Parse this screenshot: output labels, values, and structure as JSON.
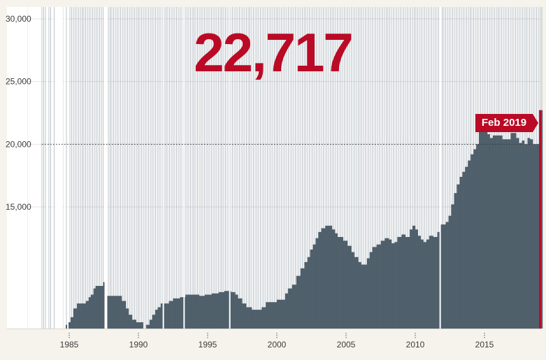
{
  "headline": "22,717",
  "annotation": {
    "label": "Feb 2019",
    "reference_line_value": 20000
  },
  "colors": {
    "background": "#f5f3ec",
    "plot_background": "#ffffff",
    "bars": "#4d5e69",
    "accent": "#ba0a26",
    "grid": "#e4e4e4"
  },
  "chart_data": {
    "type": "bar",
    "title": "",
    "xlabel": "",
    "ylabel": "",
    "ylim": [
      0,
      30000
    ],
    "xlim": [
      1980,
      2019.2
    ],
    "grid": true,
    "legend": "none",
    "y_ticks": [
      {
        "value": 30000,
        "label": "30,000"
      },
      {
        "value": 25000,
        "label": "25,000"
      },
      {
        "value": 20000,
        "label": "20,000"
      },
      {
        "value": 15000,
        "label": "15,000"
      }
    ],
    "x_ticks": [
      {
        "value": 1985,
        "label": "1985"
      },
      {
        "value": 1990,
        "label": "1990"
      },
      {
        "value": 1995,
        "label": "1995"
      },
      {
        "value": 2000,
        "label": "2000"
      },
      {
        "value": 2005,
        "label": "2005"
      },
      {
        "value": 2010,
        "label": "2010"
      },
      {
        "value": 2015,
        "label": "2015"
      }
    ],
    "gaps": [
      [
        1983.35,
        1983.45
      ],
      [
        1983.75,
        1983.85
      ],
      [
        1983.95,
        1984.55
      ],
      [
        1984.65,
        1984.75
      ],
      [
        1984.85,
        1984.95
      ],
      [
        1987.55,
        1987.75
      ],
      [
        1991.75,
        1991.85
      ],
      [
        1993.25,
        1993.35
      ],
      [
        1996.55,
        1996.65
      ],
      [
        2011.75,
        2011.85
      ]
    ],
    "series": [
      {
        "values": [
          [
            1983.0,
            0
          ],
          [
            1983.05,
            3700
          ],
          [
            1983.35,
            3700
          ],
          [
            1983.45,
            4000
          ],
          [
            1983.55,
            4200
          ],
          [
            1983.65,
            4500
          ],
          [
            1983.75,
            4900
          ],
          [
            1984.55,
            5300
          ],
          [
            1984.75,
            5600
          ],
          [
            1984.95,
            5800
          ],
          [
            1985.1,
            6200
          ],
          [
            1985.3,
            6900
          ],
          [
            1985.55,
            7300
          ],
          [
            1986.0,
            7300
          ],
          [
            1986.2,
            7500
          ],
          [
            1986.4,
            7800
          ],
          [
            1986.55,
            8000
          ],
          [
            1986.75,
            8500
          ],
          [
            1986.9,
            8700
          ],
          [
            1987.45,
            9000
          ],
          [
            1987.55,
            8700
          ],
          [
            1987.75,
            7900
          ],
          [
            1988.5,
            7900
          ],
          [
            1988.8,
            7500
          ],
          [
            1989.1,
            6900
          ],
          [
            1989.3,
            6400
          ],
          [
            1989.55,
            6000
          ],
          [
            1989.85,
            5800
          ],
          [
            1990.2,
            5800
          ],
          [
            1990.35,
            5300
          ],
          [
            1990.55,
            5600
          ],
          [
            1990.8,
            6000
          ],
          [
            1991.0,
            6400
          ],
          [
            1991.2,
            6800
          ],
          [
            1991.4,
            7000
          ],
          [
            1991.6,
            7300
          ],
          [
            1992.2,
            7500
          ],
          [
            1992.5,
            7700
          ],
          [
            1993.0,
            7800
          ],
          [
            1993.4,
            8000
          ],
          [
            1994.4,
            7900
          ],
          [
            1994.8,
            8000
          ],
          [
            1995.3,
            8100
          ],
          [
            1995.8,
            8200
          ],
          [
            1996.2,
            8300
          ],
          [
            1996.7,
            8200
          ],
          [
            1997.0,
            8000
          ],
          [
            1997.2,
            7700
          ],
          [
            1997.5,
            7300
          ],
          [
            1997.8,
            7000
          ],
          [
            1998.2,
            6800
          ],
          [
            1998.7,
            6800
          ],
          [
            1998.9,
            7000
          ],
          [
            1999.2,
            7400
          ],
          [
            1999.8,
            7400
          ],
          [
            2000.0,
            7600
          ],
          [
            2000.5,
            7600
          ],
          [
            2000.6,
            8100
          ],
          [
            2000.8,
            8500
          ],
          [
            2001.1,
            8800
          ],
          [
            2001.4,
            9500
          ],
          [
            2001.7,
            10100
          ],
          [
            2002.0,
            10600
          ],
          [
            2002.2,
            11000
          ],
          [
            2002.4,
            11600
          ],
          [
            2002.6,
            12000
          ],
          [
            2002.8,
            12500
          ],
          [
            2003.0,
            13000
          ],
          [
            2003.2,
            13300
          ],
          [
            2003.5,
            13500
          ],
          [
            2003.8,
            13500
          ],
          [
            2004.0,
            13200
          ],
          [
            2004.2,
            12900
          ],
          [
            2004.4,
            12600
          ],
          [
            2004.6,
            12600
          ],
          [
            2004.8,
            12300
          ],
          [
            2005.1,
            11900
          ],
          [
            2005.4,
            11400
          ],
          [
            2005.6,
            11000
          ],
          [
            2005.9,
            10600
          ],
          [
            2006.1,
            10400
          ],
          [
            2006.3,
            10400
          ],
          [
            2006.5,
            10900
          ],
          [
            2006.7,
            11400
          ],
          [
            2006.9,
            11800
          ],
          [
            2007.2,
            12000
          ],
          [
            2007.5,
            12300
          ],
          [
            2007.8,
            12500
          ],
          [
            2008.1,
            12400
          ],
          [
            2008.3,
            12100
          ],
          [
            2008.5,
            12200
          ],
          [
            2008.7,
            12600
          ],
          [
            2009.0,
            12800
          ],
          [
            2009.3,
            12600
          ],
          [
            2009.6,
            13200
          ],
          [
            2009.8,
            13500
          ],
          [
            2010.0,
            13200
          ],
          [
            2010.2,
            12700
          ],
          [
            2010.4,
            12400
          ],
          [
            2010.6,
            12200
          ],
          [
            2010.8,
            12400
          ],
          [
            2011.0,
            12700
          ],
          [
            2011.3,
            12600
          ],
          [
            2011.6,
            13000
          ],
          [
            2011.8,
            13600
          ],
          [
            2012.2,
            13800
          ],
          [
            2012.4,
            14300
          ],
          [
            2012.6,
            15200
          ],
          [
            2012.8,
            16100
          ],
          [
            2013.0,
            16800
          ],
          [
            2013.2,
            17400
          ],
          [
            2013.4,
            17800
          ],
          [
            2013.6,
            18200
          ],
          [
            2013.8,
            18700
          ],
          [
            2014.0,
            19200
          ],
          [
            2014.2,
            19600
          ],
          [
            2014.4,
            20000
          ],
          [
            2014.6,
            21200
          ],
          [
            2014.8,
            21700
          ],
          [
            2014.9,
            22300
          ],
          [
            2015.0,
            21700
          ],
          [
            2015.2,
            20800
          ],
          [
            2015.4,
            20500
          ],
          [
            2015.6,
            20700
          ],
          [
            2016.1,
            20700
          ],
          [
            2016.3,
            20400
          ],
          [
            2016.7,
            20400
          ],
          [
            2016.9,
            20900
          ],
          [
            2017.1,
            20900
          ],
          [
            2017.3,
            20500
          ],
          [
            2017.5,
            20100
          ],
          [
            2017.7,
            20300
          ],
          [
            2017.9,
            20000
          ],
          [
            2018.1,
            20500
          ],
          [
            2018.3,
            20400
          ],
          [
            2018.5,
            20000
          ],
          [
            2018.8,
            20000
          ],
          [
            2018.95,
            22717
          ]
        ]
      }
    ]
  }
}
